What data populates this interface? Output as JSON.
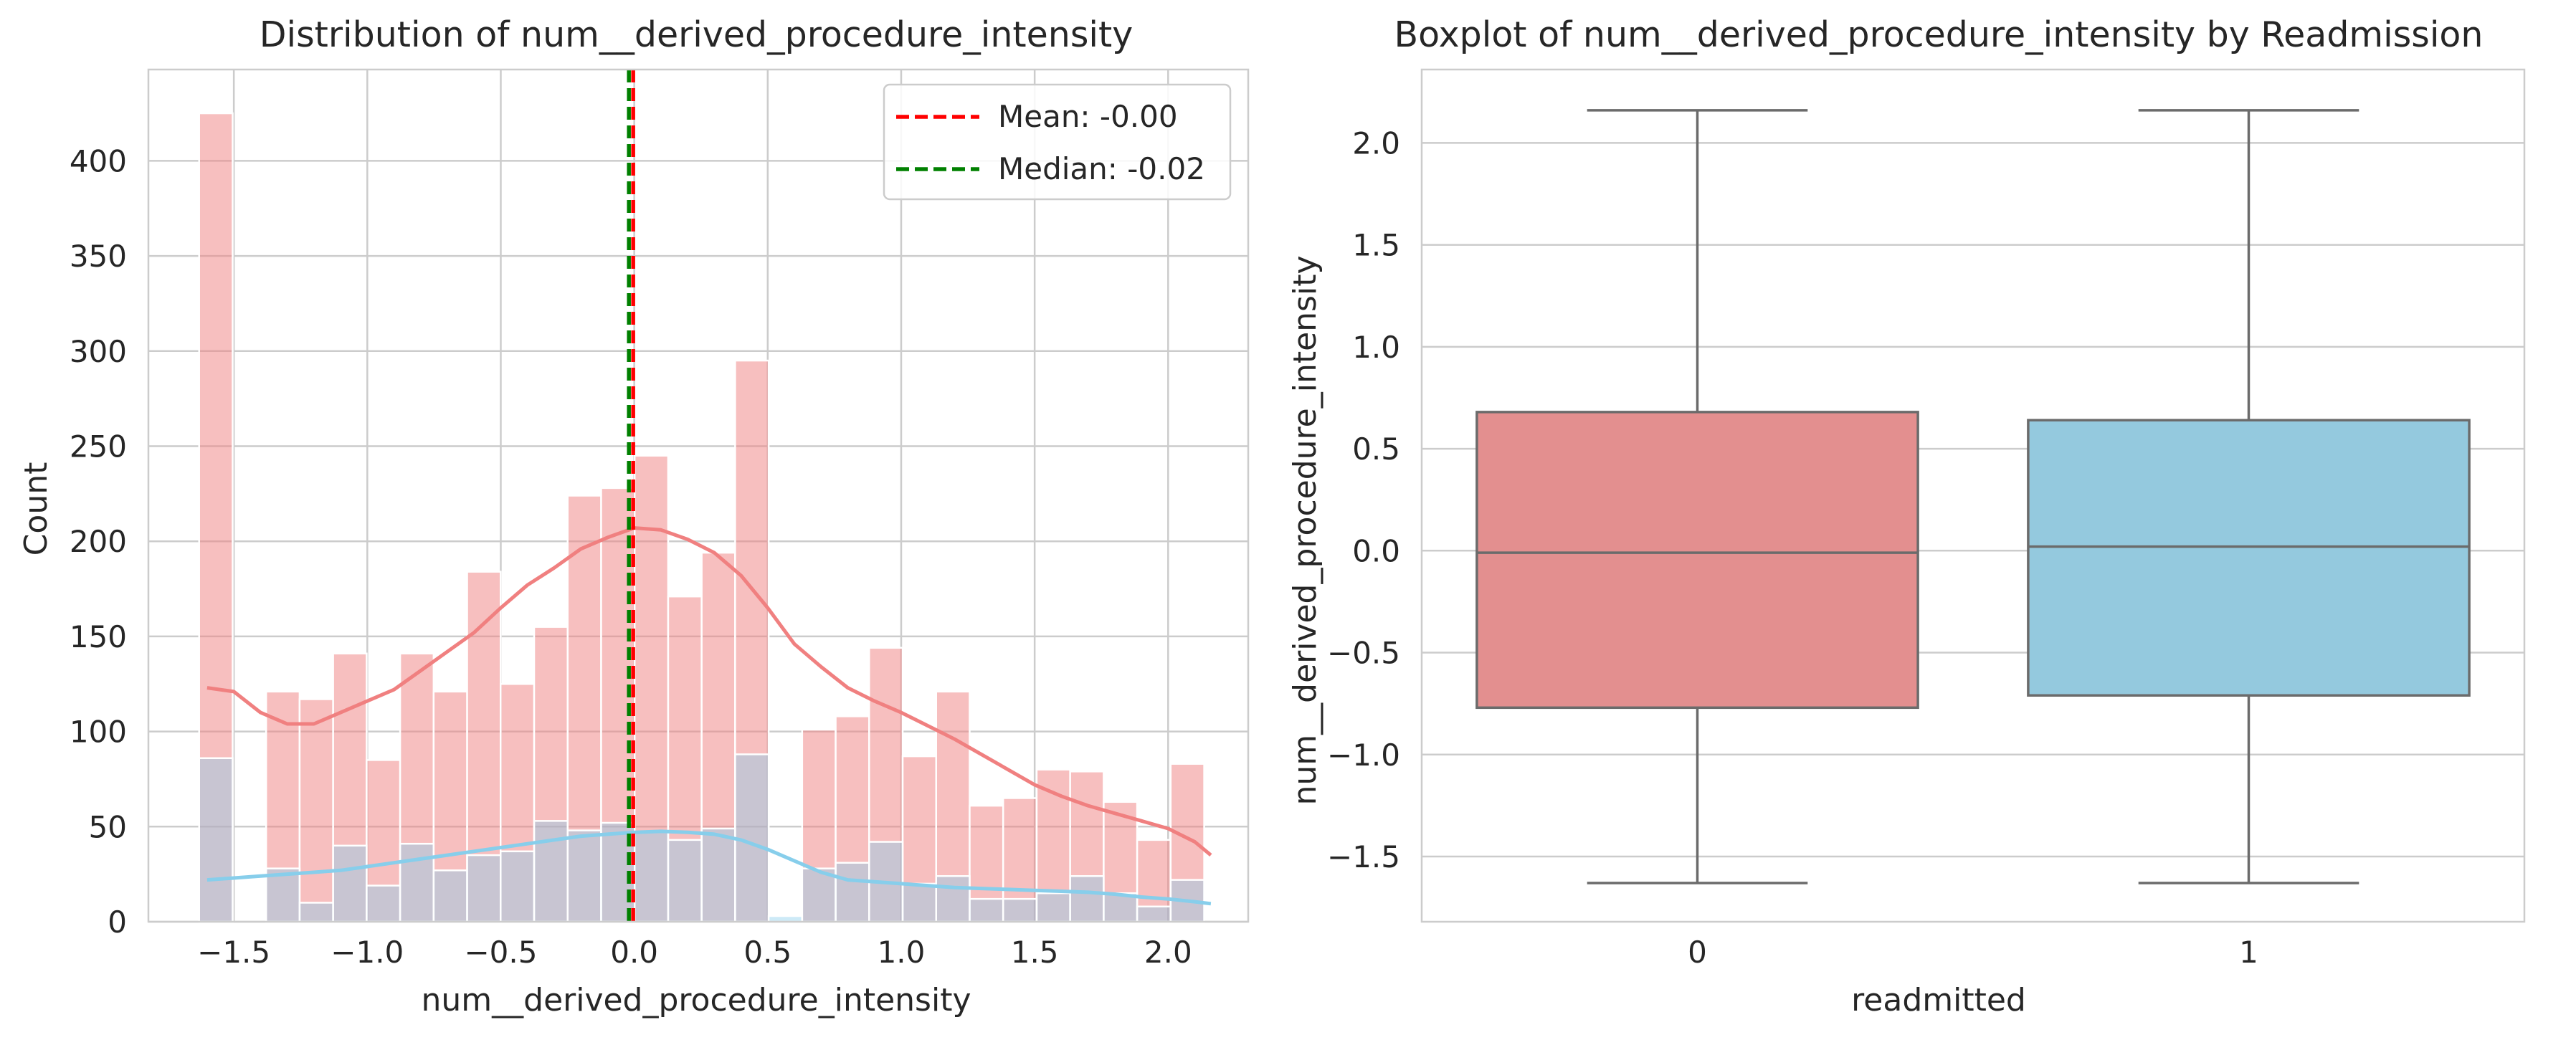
{
  "colors": {
    "pink": "#f08080",
    "blue": "#87ceeb",
    "mean": "#ff0000",
    "median": "#008000",
    "grid": "#cccccc",
    "box_line": "#6b6b6b"
  },
  "chart_data": [
    {
      "type": "histogram",
      "title": "Distribution of num__derived_procedure_intensity",
      "xlabel": "num__derived_procedure_intensity",
      "ylabel": "Count",
      "xlim": [
        -1.82,
        2.3
      ],
      "ylim": [
        0,
        448
      ],
      "xticks": [
        -1.5,
        -1.0,
        -0.5,
        0.0,
        0.5,
        1.0,
        1.5,
        2.0
      ],
      "xtick_labels": [
        "−1.5",
        "−1.0",
        "−0.5",
        "0.0",
        "0.5",
        "1.0",
        "1.5",
        "2.0"
      ],
      "yticks": [
        0,
        50,
        100,
        150,
        200,
        250,
        300,
        350,
        400
      ],
      "ytick_labels": [
        "0",
        "50",
        "100",
        "150",
        "200",
        "250",
        "300",
        "350",
        "400"
      ],
      "bin_start": -1.63,
      "bin_width": 0.1255,
      "series": [
        {
          "color": "#f08080",
          "values": [
            425,
            0,
            121,
            117,
            141,
            85,
            141,
            121,
            184,
            125,
            155,
            224,
            228,
            245,
            171,
            194,
            295,
            0,
            101,
            108,
            144,
            87,
            121,
            61,
            65,
            80,
            79,
            63,
            43,
            83
          ]
        },
        {
          "color": "#87ceeb",
          "values": [
            86,
            0,
            28,
            10,
            40,
            19,
            41,
            27,
            35,
            37,
            53,
            48,
            52,
            47,
            43,
            49,
            88,
            3,
            28,
            31,
            42,
            20,
            24,
            12,
            12,
            15,
            24,
            15,
            8,
            22
          ]
        }
      ],
      "kde": [
        {
          "color": "#f08080",
          "x": [
            -1.6,
            -1.5,
            -1.4,
            -1.3,
            -1.2,
            -1.1,
            -1.0,
            -0.9,
            -0.8,
            -0.7,
            -0.6,
            -0.5,
            -0.4,
            -0.3,
            -0.2,
            -0.1,
            0.0,
            0.1,
            0.2,
            0.3,
            0.4,
            0.5,
            0.6,
            0.7,
            0.8,
            0.9,
            1.0,
            1.1,
            1.2,
            1.3,
            1.4,
            1.5,
            1.6,
            1.7,
            1.8,
            1.9,
            2.0,
            2.1,
            2.16
          ],
          "y": [
            123,
            121,
            110,
            104,
            104,
            110,
            116,
            122,
            132,
            142,
            152,
            165,
            177,
            186,
            196,
            202,
            207,
            206,
            201,
            194,
            182,
            165,
            146,
            134,
            123,
            116,
            110,
            103,
            96,
            88,
            80,
            72,
            66,
            61,
            57,
            53,
            49,
            42,
            35
          ]
        },
        {
          "color": "#87ceeb",
          "x": [
            -1.6,
            -1.5,
            -1.4,
            -1.3,
            -1.2,
            -1.1,
            -1.0,
            -0.9,
            -0.8,
            -0.7,
            -0.6,
            -0.5,
            -0.4,
            -0.3,
            -0.2,
            -0.1,
            0.0,
            0.1,
            0.2,
            0.3,
            0.4,
            0.5,
            0.6,
            0.7,
            0.8,
            0.9,
            1.0,
            1.1,
            1.2,
            1.3,
            1.4,
            1.5,
            1.6,
            1.7,
            1.8,
            1.9,
            2.0,
            2.1,
            2.16
          ],
          "y": [
            22,
            23,
            24,
            25,
            26,
            27,
            29,
            31,
            33,
            35,
            37,
            39,
            41,
            43,
            45,
            46,
            47,
            47.5,
            47,
            46,
            43,
            38,
            32,
            26,
            22,
            21,
            20,
            19,
            18,
            17.5,
            17,
            16.5,
            16,
            15.5,
            14.5,
            13,
            12,
            10.5,
            9.5
          ]
        }
      ],
      "vlines": [
        {
          "x": -0.004,
          "color": "#ff0000",
          "style": "dashed"
        },
        {
          "x": -0.02,
          "color": "#008000",
          "style": "dashed"
        }
      ],
      "legend": {
        "placement": "top-right",
        "entries": [
          {
            "label": "Mean: -0.00",
            "color": "#ff0000"
          },
          {
            "label": "Median: -0.02",
            "color": "#008000"
          }
        ]
      },
      "grid": true
    },
    {
      "type": "boxplot",
      "title": "Boxplot of num__derived_procedure_intensity by Readmission",
      "xlabel": "readmitted",
      "ylabel": "num__derived_procedure_intensity",
      "ylim": [
        -1.82,
        2.36
      ],
      "yticks": [
        -1.5,
        -1.0,
        -0.5,
        0.0,
        0.5,
        1.0,
        1.5,
        2.0
      ],
      "ytick_labels": [
        "−1.5",
        "−1.0",
        "−0.5",
        "0.0",
        "0.5",
        "1.0",
        "1.5",
        "2.0"
      ],
      "categories": [
        "0",
        "1"
      ],
      "boxes": [
        {
          "category": "0",
          "whisker_low": -1.63,
          "q1": -0.77,
          "median": -0.01,
          "q3": 0.68,
          "whisker_high": 2.16,
          "color": "#e38f8f"
        },
        {
          "category": "1",
          "whisker_low": -1.63,
          "q1": -0.71,
          "median": 0.02,
          "q3": 0.64,
          "whisker_high": 2.16,
          "color": "#94c9de"
        }
      ],
      "grid": true
    }
  ]
}
